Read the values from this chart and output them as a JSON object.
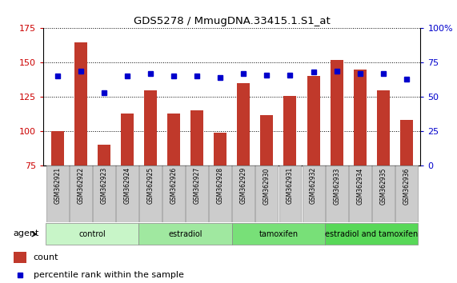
{
  "title": "GDS5278 / MmugDNA.33415.1.S1_at",
  "samples": [
    "GSM362921",
    "GSM362922",
    "GSM362923",
    "GSM362924",
    "GSM362925",
    "GSM362926",
    "GSM362927",
    "GSM362928",
    "GSM362929",
    "GSM362930",
    "GSM362931",
    "GSM362932",
    "GSM362933",
    "GSM362934",
    "GSM362935",
    "GSM362936"
  ],
  "bar_values": [
    100,
    165,
    90,
    113,
    130,
    113,
    115,
    99,
    135,
    112,
    126,
    140,
    152,
    145,
    130,
    108
  ],
  "percentile_values": [
    65,
    69,
    53,
    65,
    67,
    65,
    65,
    64,
    67,
    66,
    66,
    68,
    69,
    67,
    67,
    63
  ],
  "bar_color": "#c0392b",
  "percentile_color": "#0000cc",
  "ylim_left": [
    75,
    175
  ],
  "ylim_right": [
    0,
    100
  ],
  "yticks_left": [
    75,
    100,
    125,
    150,
    175
  ],
  "yticks_right": [
    0,
    25,
    50,
    75,
    100
  ],
  "yticklabels_right": [
    "0",
    "25",
    "50",
    "75",
    "100%"
  ],
  "groups": [
    {
      "label": "control",
      "start": 0,
      "end": 4,
      "color": "#c8f5c8"
    },
    {
      "label": "estradiol",
      "start": 4,
      "end": 8,
      "color": "#a0e8a0"
    },
    {
      "label": "tamoxifen",
      "start": 8,
      "end": 12,
      "color": "#78e078"
    },
    {
      "label": "estradiol and tamoxifen",
      "start": 12,
      "end": 16,
      "color": "#58d858"
    }
  ],
  "agent_label": "agent",
  "legend_count_label": "count",
  "legend_percentile_label": "percentile rank within the sample",
  "background_color": "#ffffff",
  "bar_bottom": 75,
  "tick_label_color_left": "#cc0000",
  "tick_label_color_right": "#0000cc",
  "sample_box_color": "#cccccc",
  "sample_box_edge": "#999999"
}
